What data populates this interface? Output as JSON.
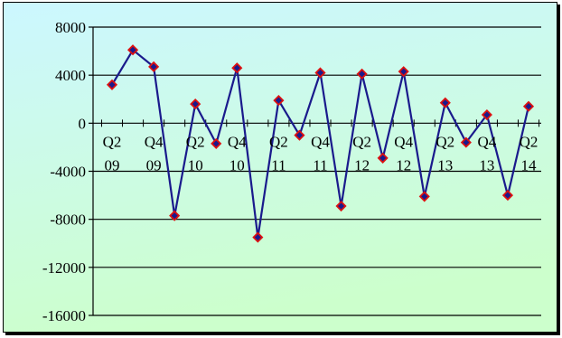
{
  "chart_data": {
    "type": "line",
    "title": "",
    "xlabel": "",
    "ylabel": "",
    "ylim": [
      -16000,
      8000
    ],
    "yticks": [
      8000,
      4000,
      0,
      -4000,
      -8000,
      -12000,
      -16000
    ],
    "grid": "horizontal",
    "legend": "none",
    "colors": {
      "line": "#1a1a8c",
      "marker_fill": "#1a1a8c",
      "marker_edge": "#dd1111",
      "bg_top_left": "#ccf7ff",
      "bg_bottom": "#ccffcc",
      "gridline": "#000000"
    },
    "category_labels": [
      {
        "line1": "Q2",
        "line2": "09"
      },
      {
        "line1": "Q4",
        "line2": "09"
      },
      {
        "line1": "Q2",
        "line2": "10"
      },
      {
        "line1": "Q4",
        "line2": "10"
      },
      {
        "line1": "Q2",
        "line2": "11"
      },
      {
        "line1": "Q4",
        "line2": "11"
      },
      {
        "line1": "Q2",
        "line2": "12"
      },
      {
        "line1": "Q4",
        "line2": "12"
      },
      {
        "line1": "Q2",
        "line2": "13"
      },
      {
        "line1": "Q4",
        "line2": "13"
      },
      {
        "line1": "Q2",
        "line2": "14"
      }
    ],
    "series": [
      {
        "values": [
          3200,
          6100,
          4700,
          -7700,
          1600,
          -1700,
          4600,
          -9500,
          1900,
          -1000,
          4200,
          -6900,
          4100,
          -2900,
          4300,
          -6100,
          1700,
          -1600,
          700,
          -6000,
          1400
        ]
      }
    ]
  }
}
